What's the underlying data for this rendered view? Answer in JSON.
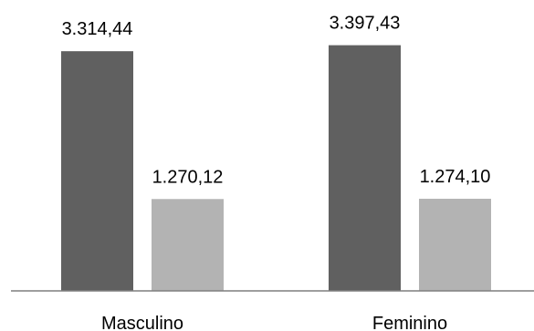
{
  "chart_data": {
    "type": "bar",
    "categories": [
      "Masculino",
      "Feminino"
    ],
    "series": [
      {
        "values": [
          3314.44,
          3397.43
        ],
        "labels": [
          "3.314,44",
          "3.397,43"
        ],
        "color": "#606060"
      },
      {
        "values": [
          1270.12,
          1274.1
        ],
        "labels": [
          "1.270,12",
          "1.274,10"
        ],
        "color": "#b3b3b3"
      }
    ],
    "title": "",
    "xlabel": "",
    "ylabel": "",
    "ylim": [
      0,
      3700
    ],
    "grid": false,
    "legend": "none",
    "axis_color": "#7f7f7f"
  }
}
